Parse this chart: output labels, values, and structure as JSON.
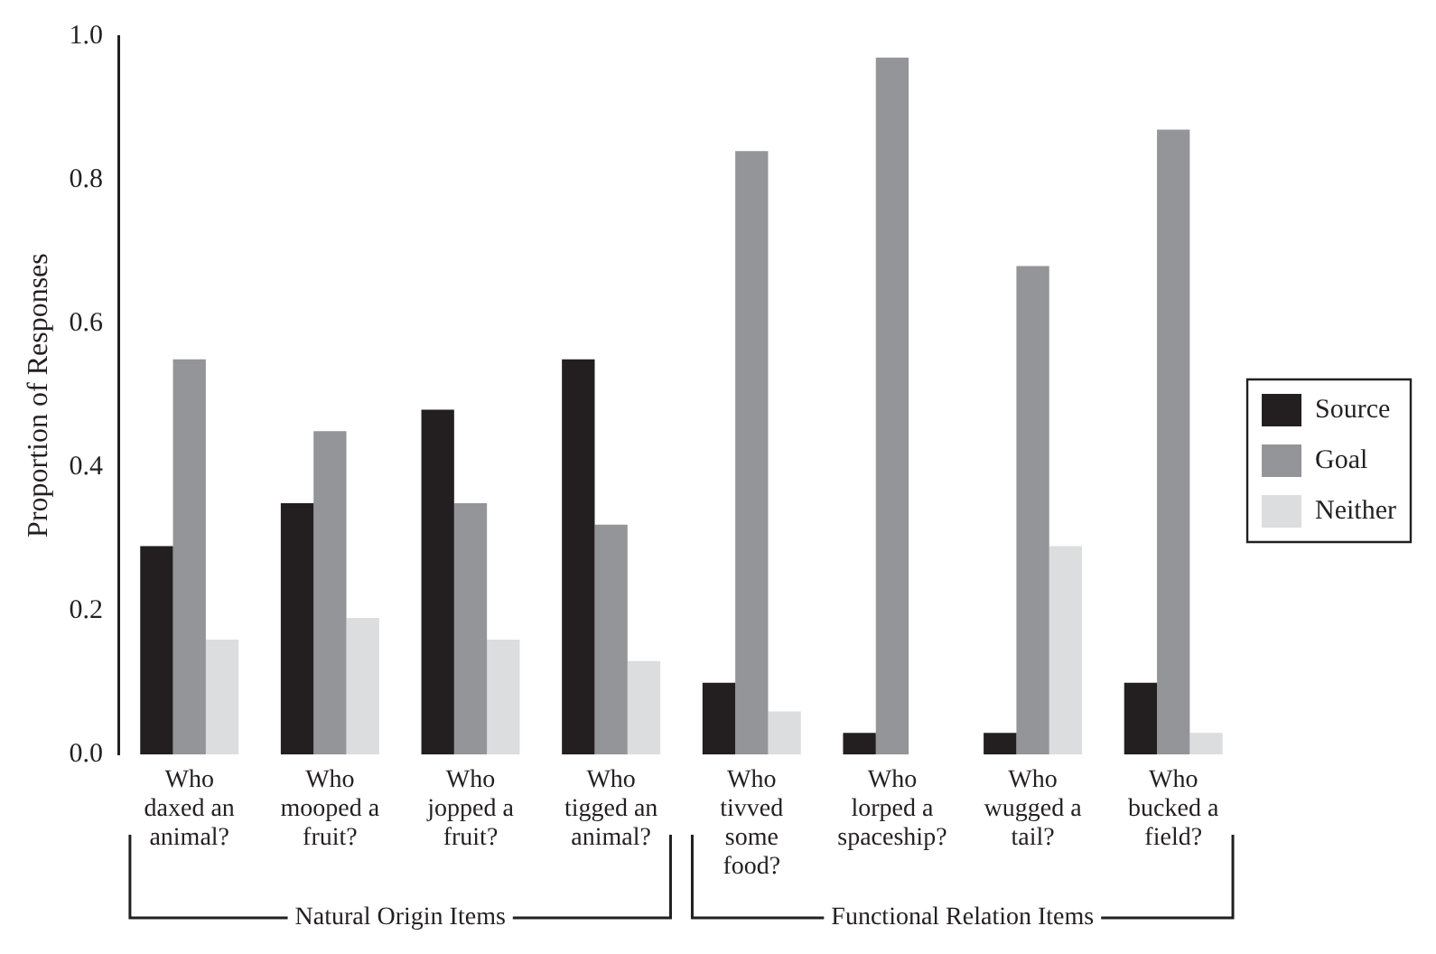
{
  "chart_data": {
    "type": "bar",
    "ylabel": "Proportion of Responses",
    "categories": [
      "Who\ndaxed an\nanimal?",
      "Who\nmooped a\nfruit?",
      "Who\njopped a\nfruit?",
      "Who\ntigged an\nanimal?",
      "Who\ntivved\nsome\nfood?",
      "Who\nlorped a\nspaceship?",
      "Who\nwugged a\ntail?",
      "Who\nbucked a\nfield?"
    ],
    "series": [
      {
        "name": "Source",
        "color": "#231f20",
        "values": [
          0.29,
          0.35,
          0.48,
          0.55,
          0.1,
          0.03,
          0.03,
          0.1
        ]
      },
      {
        "name": "Goal",
        "color": "#939598",
        "values": [
          0.55,
          0.45,
          0.35,
          0.32,
          0.84,
          0.97,
          0.68,
          0.87
        ]
      },
      {
        "name": "Neither",
        "color": "#dcdddf",
        "values": [
          0.16,
          0.19,
          0.16,
          0.13,
          0.06,
          0,
          0.29,
          0.03
        ]
      }
    ],
    "ylim": [
      0,
      1
    ],
    "yticks": [
      {
        "value": 0,
        "label": "0.0"
      },
      {
        "value": 0.2,
        "label": "0.2"
      },
      {
        "value": 0.4,
        "label": "0.4"
      },
      {
        "value": 0.6,
        "label": "0.6"
      },
      {
        "value": 0.8,
        "label": "0.8"
      },
      {
        "value": 1,
        "label": "1.0"
      }
    ],
    "grid": false,
    "legend": "right",
    "annotations": [
      "Natural Origin Items",
      "Functional Relation Items"
    ]
  }
}
